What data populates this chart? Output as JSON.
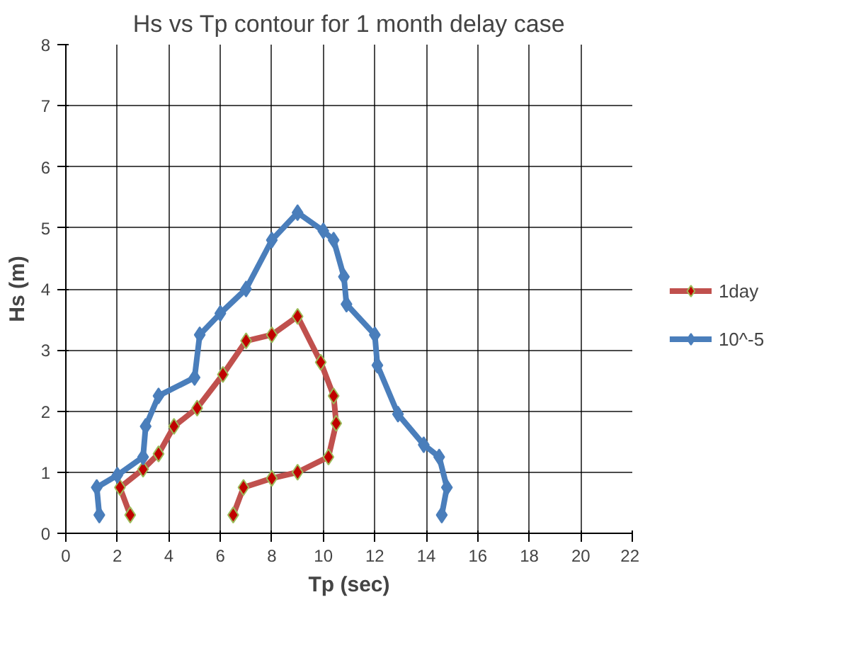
{
  "chart_data": {
    "type": "line",
    "title": "Hs vs Tp contour for 1 month delay case",
    "xlabel": "Tp (sec)",
    "ylabel": "Hs (m)",
    "xlim": [
      0,
      22
    ],
    "ylim": [
      0,
      8
    ],
    "xticks": [
      0,
      2,
      4,
      6,
      8,
      10,
      12,
      14,
      16,
      18,
      20,
      22
    ],
    "yticks": [
      0,
      1,
      2,
      3,
      4,
      5,
      6,
      7,
      8
    ],
    "grid": true,
    "legend": "right",
    "marker": "diamond",
    "series": [
      {
        "name": "1day",
        "color": "#c0504d",
        "x": [
          2.5,
          2.1,
          3,
          3.6,
          4.2,
          5.1,
          6.1,
          7,
          8,
          9,
          9.9,
          10.4,
          10.5,
          10.2,
          9,
          8,
          6.9,
          6.5
        ],
        "values": [
          0.3,
          0.75,
          1.05,
          1.3,
          1.75,
          2.05,
          2.6,
          3.15,
          3.25,
          3.55,
          2.8,
          2.25,
          1.8,
          1.25,
          1.0,
          0.9,
          0.75,
          0.3
        ]
      },
      {
        "name": "10^-5",
        "color": "#4a7ebb",
        "x": [
          1.3,
          1.2,
          2,
          3,
          3.1,
          3.6,
          5,
          5.2,
          6,
          7,
          8,
          9,
          10,
          10.4,
          10.8,
          10.9,
          12,
          12.1,
          12.9,
          13.9,
          14.5,
          14.8,
          14.6
        ],
        "values": [
          0.3,
          0.75,
          0.95,
          1.25,
          1.75,
          2.25,
          2.55,
          3.25,
          3.6,
          4.0,
          4.8,
          5.25,
          4.95,
          4.8,
          4.2,
          3.75,
          3.25,
          2.75,
          1.95,
          1.45,
          1.25,
          0.75,
          0.3
        ]
      }
    ]
  }
}
